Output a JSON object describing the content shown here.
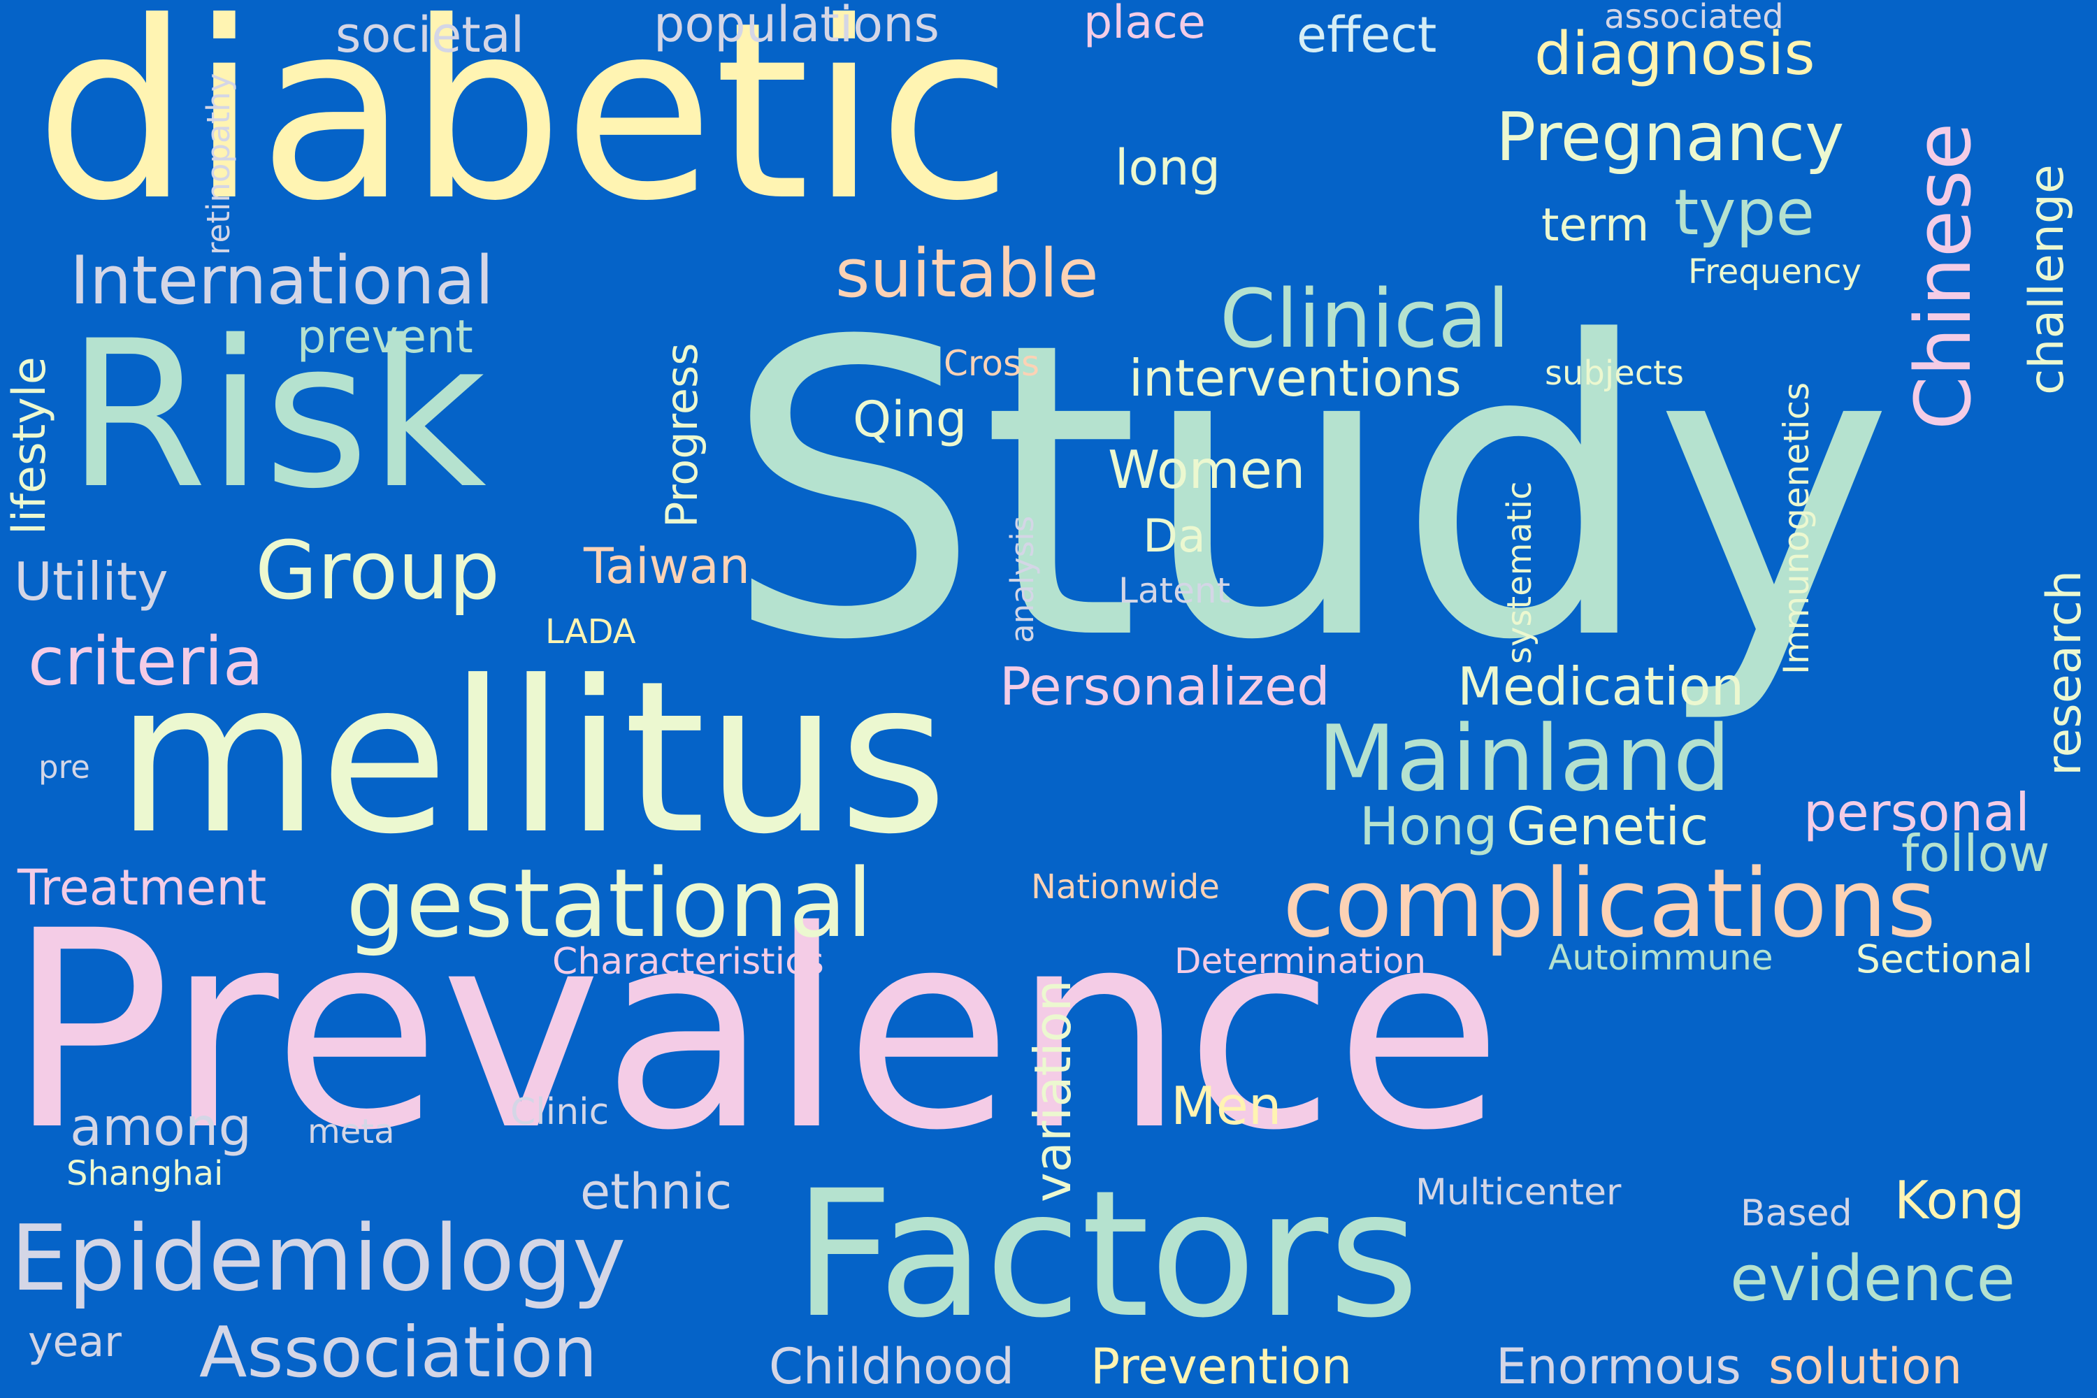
{
  "background": "#0563C8",
  "palette": {
    "yellow": "#FFF4B2",
    "mint": "#B5E2CF",
    "pink": "#F4CCE6",
    "peach": "#FCD2B5",
    "cream": "#ECF8D0",
    "silver": "#D4D6E6",
    "sky": "#D6EEF5"
  },
  "words": [
    "Study",
    "Prevalence",
    "diabetic",
    "mellitus",
    "Risk",
    "Factors",
    "complications",
    "gestational",
    "Epidemiology",
    "Mainland",
    "Clinical",
    "Group",
    "Pregnancy",
    "Chinese",
    "International",
    "Association",
    "criteria",
    "suitable",
    "diagnosis",
    "type",
    "evidence",
    "Genetic",
    "Medication",
    "Personalized",
    "personal",
    "Prevention",
    "Childhood",
    "Enormous",
    "solution",
    "Treatment",
    "Utility",
    "among",
    "variation",
    "interventions",
    "Women",
    "Hong",
    "follow",
    "research",
    "challenge",
    "Men",
    "Kong",
    "ethnic",
    "Qing",
    "Taiwan",
    "long",
    "term",
    "Da",
    "populations",
    "effect",
    "societal",
    "place",
    "prevent",
    "lifestyle",
    "Progress",
    "year",
    "Latent",
    "Cross",
    "Nationwide",
    "Characteristics",
    "Determination",
    "Autoimmune",
    "Sectional",
    "Multicenter",
    "Clinic",
    "Based",
    "Shanghai",
    "meta",
    "LADA",
    "Immunogenetics",
    "systematic",
    "analysis",
    "retinopathy",
    "subjects",
    "Frequency",
    "associated",
    "pre"
  ]
}
